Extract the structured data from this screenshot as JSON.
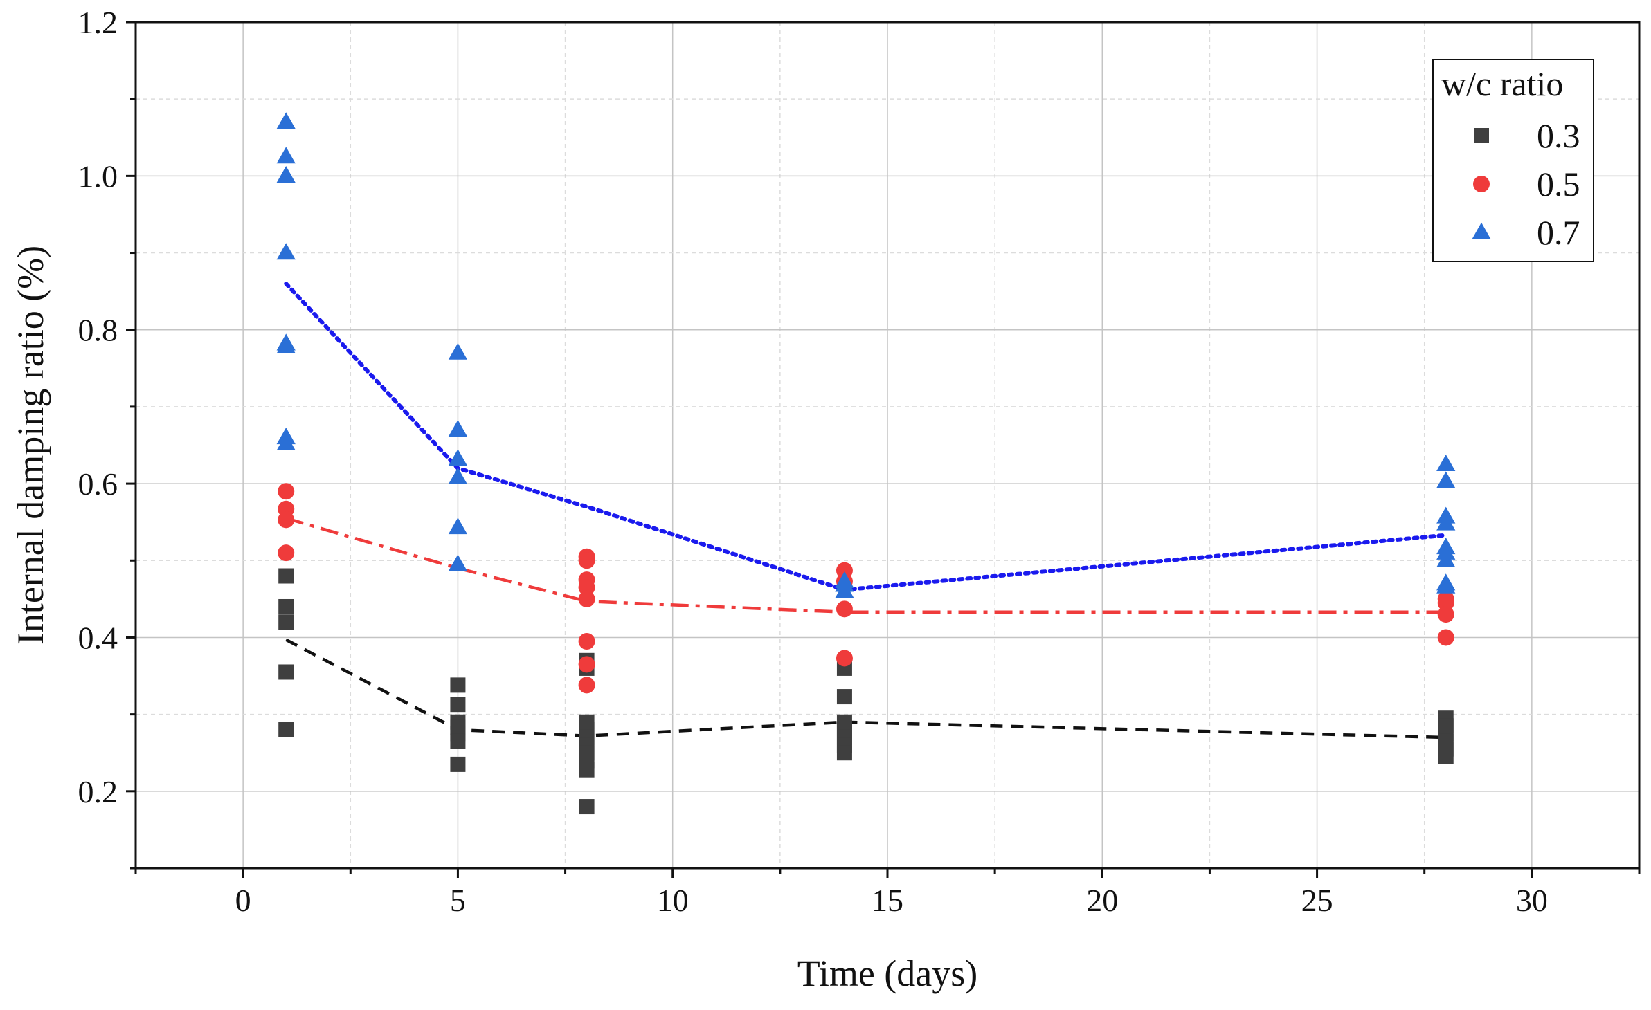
{
  "chart_data": {
    "type": "scatter",
    "title": "",
    "xlabel": "Time (days)",
    "ylabel": "Internal damping ratio (%)",
    "xlim": [
      -2.5,
      32.5
    ],
    "ylim": [
      0.1,
      1.2
    ],
    "xticks": [
      0,
      5,
      10,
      15,
      20,
      25,
      30
    ],
    "yticks": [
      0.2,
      0.4,
      0.6,
      0.8,
      1.0,
      1.2
    ],
    "xtick_labels": [
      "0",
      "5",
      "10",
      "15",
      "20",
      "25",
      "30"
    ],
    "ytick_labels": [
      "0.2",
      "0.4",
      "0.6",
      "0.8",
      "1.0",
      "1.2"
    ],
    "grid": true,
    "legend": {
      "title": "w/c ratio",
      "position": "top-right",
      "entries": [
        "0.3",
        "0.5",
        "0.7"
      ]
    },
    "series": [
      {
        "name": "0.3",
        "marker": "square",
        "color": "#3f3f3f",
        "line_color": "#111111",
        "line_style": "dash",
        "points": [
          [
            1,
            0.48
          ],
          [
            1,
            0.44
          ],
          [
            1,
            0.42
          ],
          [
            1,
            0.355
          ],
          [
            1,
            0.28
          ],
          [
            5,
            0.338
          ],
          [
            5,
            0.313
          ],
          [
            5,
            0.29
          ],
          [
            5,
            0.283
          ],
          [
            5,
            0.275
          ],
          [
            5,
            0.265
          ],
          [
            5,
            0.235
          ],
          [
            8,
            0.37
          ],
          [
            8,
            0.36
          ],
          [
            8,
            0.29
          ],
          [
            8,
            0.28
          ],
          [
            8,
            0.27
          ],
          [
            8,
            0.26
          ],
          [
            8,
            0.25
          ],
          [
            8,
            0.24
          ],
          [
            8,
            0.228
          ],
          [
            8,
            0.18
          ],
          [
            14,
            0.36
          ],
          [
            14,
            0.323
          ],
          [
            14,
            0.29
          ],
          [
            14,
            0.28
          ],
          [
            14,
            0.27
          ],
          [
            14,
            0.26
          ],
          [
            14,
            0.25
          ],
          [
            28,
            0.295
          ],
          [
            28,
            0.285
          ],
          [
            28,
            0.275
          ],
          [
            28,
            0.265
          ],
          [
            28,
            0.255
          ],
          [
            28,
            0.245
          ]
        ],
        "trend_x": [
          1,
          5,
          8,
          14,
          28
        ],
        "trend_y": [
          0.397,
          0.28,
          0.272,
          0.29,
          0.27
        ]
      },
      {
        "name": "0.5",
        "marker": "circle",
        "color": "#ef3b3b",
        "line_color": "#ef3b3b",
        "line_style": "dash-dot",
        "points": [
          [
            1,
            0.59
          ],
          [
            1,
            0.567
          ],
          [
            1,
            0.553
          ],
          [
            1,
            0.51
          ],
          [
            8,
            0.505
          ],
          [
            8,
            0.5
          ],
          [
            8,
            0.475
          ],
          [
            8,
            0.465
          ],
          [
            8,
            0.45
          ],
          [
            8,
            0.395
          ],
          [
            8,
            0.365
          ],
          [
            8,
            0.338
          ],
          [
            14,
            0.487
          ],
          [
            14,
            0.473
          ],
          [
            14,
            0.437
          ],
          [
            14,
            0.373
          ],
          [
            28,
            0.45
          ],
          [
            28,
            0.445
          ],
          [
            28,
            0.43
          ],
          [
            28,
            0.4
          ]
        ],
        "trend_x": [
          1,
          5,
          8,
          14,
          28
        ],
        "trend_y": [
          0.555,
          0.49,
          0.447,
          0.433,
          0.433
        ]
      },
      {
        "name": "0.7",
        "marker": "triangle",
        "color": "#2a6fd6",
        "line_color": "#1a1aee",
        "line_style": "dot",
        "points": [
          [
            1,
            1.07
          ],
          [
            1,
            1.025
          ],
          [
            1,
            1.0
          ],
          [
            1,
            0.9
          ],
          [
            1,
            0.782
          ],
          [
            1,
            0.778
          ],
          [
            1,
            0.66
          ],
          [
            1,
            0.652
          ],
          [
            5,
            0.77
          ],
          [
            5,
            0.67
          ],
          [
            5,
            0.632
          ],
          [
            5,
            0.608
          ],
          [
            5,
            0.543
          ],
          [
            5,
            0.495
          ],
          [
            14,
            0.473
          ],
          [
            14,
            0.468
          ],
          [
            14,
            0.46
          ],
          [
            28,
            0.625
          ],
          [
            28,
            0.603
          ],
          [
            28,
            0.557
          ],
          [
            28,
            0.548
          ],
          [
            28,
            0.517
          ],
          [
            28,
            0.51
          ],
          [
            28,
            0.5
          ],
          [
            28,
            0.47
          ],
          [
            28,
            0.466
          ]
        ],
        "trend_x": [
          1,
          5,
          8,
          14,
          28
        ],
        "trend_y": [
          0.86,
          0.62,
          0.57,
          0.462,
          0.533
        ]
      }
    ]
  }
}
